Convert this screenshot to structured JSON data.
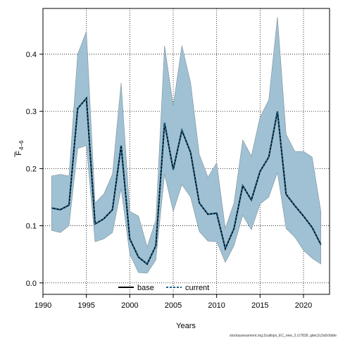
{
  "chart_data": {
    "type": "line",
    "xlabel": "Years",
    "ylabel_main": "F",
    "ylabel_sub": "4−6",
    "xlim": [
      1990,
      2023
    ],
    "ylim": [
      -0.02,
      0.48
    ],
    "x_ticks": [
      1990,
      1995,
      2000,
      2005,
      2010,
      2015,
      2020
    ],
    "y_ticks": [
      0.0,
      0.1,
      0.2,
      0.3,
      0.4
    ],
    "y_tick_labels": [
      "0.0",
      "0.1",
      "0.2",
      "0.3",
      "0.4"
    ],
    "grid": true,
    "legend_position": "bottom-center",
    "colors": {
      "band": "#9fc1d3",
      "band_edge": "#7f8f99",
      "base": "#000000",
      "current": "#1a5f86",
      "grid": "#000000"
    },
    "x": [
      1991,
      1992,
      1993,
      1994,
      1995,
      1996,
      1997,
      1998,
      1999,
      2000,
      2001,
      2002,
      2003,
      2004,
      2005,
      2006,
      2007,
      2008,
      2009,
      2010,
      2011,
      2012,
      2013,
      2014,
      2015,
      2016,
      2017,
      2018,
      2019,
      2020,
      2021,
      2022
    ],
    "band": {
      "upper": [
        0.187,
        0.19,
        0.187,
        0.4,
        0.44,
        0.14,
        0.155,
        0.19,
        0.35,
        0.125,
        0.117,
        0.063,
        0.11,
        0.415,
        0.31,
        0.415,
        0.35,
        0.225,
        0.185,
        0.21,
        0.095,
        0.14,
        0.25,
        0.222,
        0.29,
        0.32,
        0.465,
        0.26,
        0.23,
        0.23,
        0.22,
        0.125
      ],
      "lower": [
        0.092,
        0.088,
        0.1,
        0.235,
        0.24,
        0.072,
        0.077,
        0.088,
        0.165,
        0.05,
        0.018,
        0.017,
        0.04,
        0.19,
        0.125,
        0.172,
        0.15,
        0.09,
        0.073,
        0.072,
        0.036,
        0.065,
        0.118,
        0.093,
        0.138,
        0.15,
        0.193,
        0.095,
        0.08,
        0.057,
        0.043,
        0.033
      ]
    },
    "series": [
      {
        "name": "base",
        "values": [
          0.131,
          0.128,
          0.136,
          0.305,
          0.323,
          0.103,
          0.112,
          0.128,
          0.24,
          0.077,
          0.045,
          0.033,
          0.065,
          0.28,
          0.198,
          0.267,
          0.228,
          0.14,
          0.12,
          0.122,
          0.06,
          0.095,
          0.17,
          0.145,
          0.195,
          0.22,
          0.3,
          0.155,
          0.135,
          0.117,
          0.097,
          0.067
        ]
      },
      {
        "name": "current",
        "values": [
          0.131,
          0.128,
          0.136,
          0.305,
          0.323,
          0.103,
          0.112,
          0.128,
          0.24,
          0.077,
          0.045,
          0.033,
          0.065,
          0.28,
          0.198,
          0.267,
          0.228,
          0.14,
          0.12,
          0.122,
          0.06,
          0.095,
          0.17,
          0.145,
          0.195,
          0.22,
          0.3,
          0.155,
          0.135,
          0.117,
          0.097,
          0.067
        ]
      }
    ]
  },
  "legend": {
    "base_label": "base",
    "current_label": "current"
  },
  "footer": {
    "text": "stockassessment.org,Scallops_EC_new_2,r17839, gitec2c2a0c6dde"
  }
}
